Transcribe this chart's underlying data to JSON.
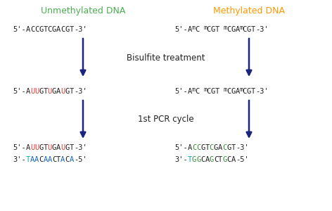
{
  "bg_color": "#ffffff",
  "arrow_color": "#1a237e",
  "label_unmeth": "Unmethylated DNA",
  "label_meth": "Methylated DNA",
  "label_unmeth_color": "#4caf50",
  "label_meth_color": "#ff9800",
  "bisulfite_label": "Bisulfite treatment",
  "pcr_label": "1st PCR cycle",
  "dark": "#222222",
  "red": "#e53935",
  "blue_seq": "#1565c0",
  "green_seq": "#388e3c",
  "cyan_seq": "#00acc1",
  "figsize": [
    4.72,
    3.0
  ],
  "dpi": 100
}
